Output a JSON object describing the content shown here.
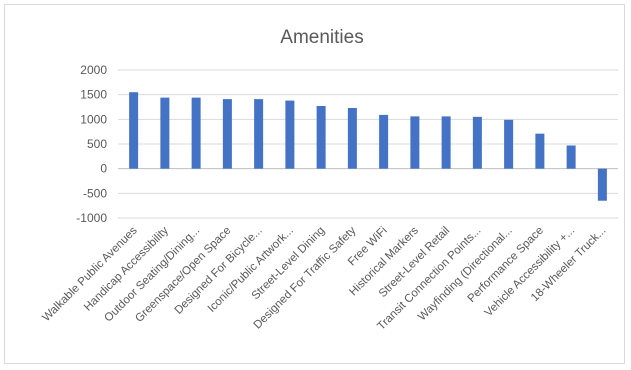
{
  "chart_data": {
    "type": "bar",
    "title": "Amenities",
    "xlabel": "",
    "ylabel": "",
    "ylim": [
      -1000,
      2000
    ],
    "yticks": [
      2000,
      1500,
      1000,
      500,
      0,
      -500,
      -1000
    ],
    "grid": true,
    "legend": "none",
    "bar_color": "#4472c4",
    "categories": [
      "Walkable Public Avenues",
      "Handicap Accessibility",
      "Outdoor Seating/Dining...",
      "Greenspace/Open Space",
      "Designed For Bicycle...",
      "Iconic/Public Artwork...",
      "Street-Level Dining",
      "Designed For Traffic Safety",
      "Free WiFi",
      "Historical Markers",
      "Street-Level Retail",
      "Transit Connection Points...",
      "Wayfinding (Directional...",
      "Performance Space",
      "Vehicle Accessibility +...",
      "18-Wheeler Truck..."
    ],
    "values": [
      1550,
      1440,
      1440,
      1410,
      1410,
      1380,
      1270,
      1230,
      1090,
      1060,
      1060,
      1050,
      990,
      710,
      470,
      -650
    ]
  }
}
